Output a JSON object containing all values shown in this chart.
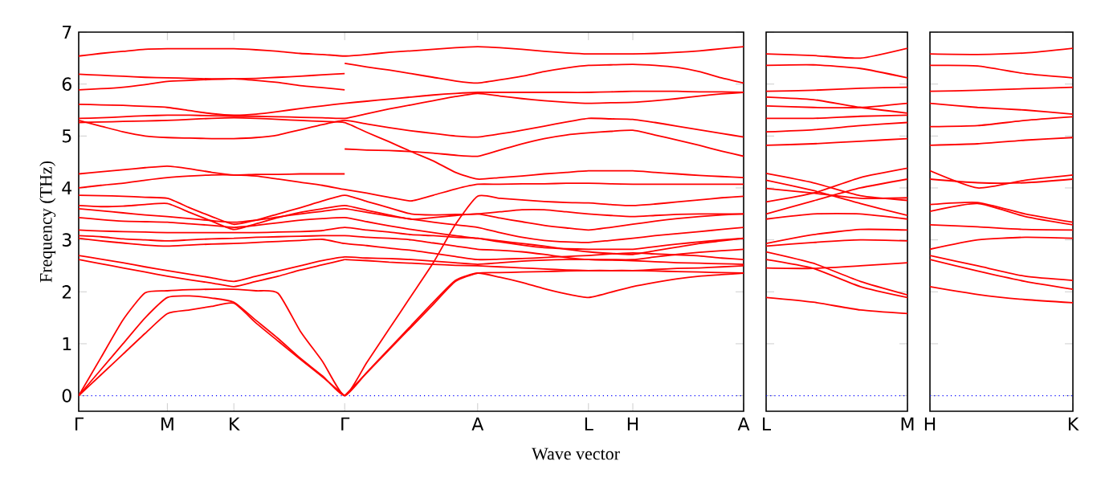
{
  "chart_data": [
    {
      "type": "line",
      "xlabel": "Wave vector",
      "ylabel": "Frequency (THz)",
      "ylim": [
        -0.3,
        7
      ],
      "yticks": [
        0,
        1,
        2,
        3,
        4,
        5,
        6,
        7
      ],
      "categories": [
        "Γ",
        null,
        null,
        null,
        "M",
        null,
        null,
        "K",
        null,
        null,
        null,
        null,
        "Γ",
        null,
        null,
        null,
        null,
        null,
        "A",
        null,
        null,
        null,
        null,
        "L",
        null,
        "H",
        null,
        null,
        null,
        null,
        "A"
      ],
      "ref_lines": [
        {
          "axis": "y",
          "value": 0,
          "color": "#0000ff",
          "line_style": "dotted"
        }
      ],
      "series": [
        {
          "color": "#ff0000",
          "values": [
            6.54,
            6.59,
            6.63,
            6.67,
            6.68,
            6.68,
            6.68,
            6.68,
            6.66,
            6.63,
            6.59,
            6.57,
            6.54,
            6.57,
            6.61,
            6.64,
            6.67,
            6.7,
            6.72,
            6.7,
            6.67,
            6.63,
            6.6,
            6.58,
            6.58,
            6.58,
            6.59,
            6.61,
            6.64,
            6.68,
            6.72
          ]
        },
        {
          "color": "#ff0000",
          "values": [
            6.19,
            6.17,
            6.15,
            6.13,
            6.12,
            6.11,
            6.1,
            6.1,
            6.11,
            6.13,
            6.15,
            6.18,
            6.2,
            null,
            null,
            null,
            null,
            null,
            null,
            null,
            null,
            null,
            null,
            null,
            null,
            null,
            null,
            null,
            null,
            null,
            null
          ]
        },
        {
          "color": "#ff0000",
          "values": [
            5.89,
            5.91,
            5.94,
            5.99,
            6.05,
            6.07,
            6.09,
            6.1,
            6.07,
            6.03,
            5.97,
            5.93,
            5.89,
            null,
            null,
            null,
            null,
            null,
            null,
            null,
            null,
            null,
            null,
            null,
            null,
            null,
            null,
            null,
            null,
            null,
            null
          ]
        },
        {
          "color": "#ff0000",
          "values": [
            5.61,
            5.6,
            5.59,
            5.57,
            5.55,
            5.49,
            5.43,
            5.4,
            5.42,
            5.47,
            5.53,
            5.58,
            5.63,
            5.67,
            5.71,
            5.75,
            5.79,
            5.82,
            5.84,
            5.84,
            5.84,
            5.84,
            5.84,
            5.84,
            5.85,
            5.86,
            5.86,
            5.86,
            5.85,
            5.85,
            5.84
          ]
        },
        {
          "color": "#ff0000",
          "values": [
            5.34,
            5.35,
            5.37,
            5.39,
            5.4,
            5.4,
            5.39,
            5.38,
            5.38,
            5.37,
            5.36,
            5.35,
            5.34,
            5.43,
            5.52,
            5.6,
            5.68,
            5.76,
            5.82,
            5.77,
            5.72,
            5.68,
            5.65,
            5.63,
            5.64,
            5.65,
            5.68,
            5.72,
            5.77,
            5.81,
            5.84
          ]
        },
        {
          "color": "#ff0000",
          "values": [
            5.26,
            5.27,
            5.28,
            5.29,
            5.3,
            5.32,
            5.34,
            5.35,
            5.34,
            5.32,
            5.3,
            5.28,
            5.26,
            5.07,
            4.89,
            4.7,
            4.52,
            4.3,
            4.17,
            4.2,
            4.23,
            4.27,
            4.3,
            4.33,
            4.33,
            4.33,
            4.3,
            4.27,
            4.24,
            4.22,
            4.2
          ]
        },
        {
          "color": "#ff0000",
          "values": [
            5.3,
            5.19,
            5.08,
            5.0,
            4.97,
            4.96,
            4.95,
            4.95,
            4.97,
            5.02,
            5.12,
            5.22,
            5.3,
            5.23,
            5.16,
            5.1,
            5.05,
            5.0,
            4.98,
            5.04,
            5.11,
            5.19,
            5.27,
            5.34,
            5.33,
            5.32,
            5.26,
            5.19,
            5.12,
            5.05,
            4.98
          ]
        },
        {
          "color": "#ff0000",
          "values": [
            4.27,
            4.31,
            4.35,
            4.39,
            4.42,
            4.37,
            4.3,
            4.25,
            4.26,
            4.26,
            4.27,
            4.27,
            4.27,
            null,
            null,
            null,
            null,
            null,
            null,
            null,
            null,
            null,
            null,
            null,
            null,
            null,
            null,
            null,
            null,
            null,
            null
          ]
        },
        {
          "color": "#ff0000",
          "values": [
            4.0,
            4.05,
            4.09,
            4.15,
            4.2,
            4.23,
            4.25,
            4.25,
            4.23,
            4.17,
            4.11,
            4.05,
            3.97,
            3.9,
            3.82,
            3.75,
            3.86,
            3.98,
            4.07,
            4.07,
            4.08,
            4.08,
            4.09,
            4.09,
            4.08,
            4.07,
            4.07,
            4.07,
            4.07,
            4.07,
            4.07
          ]
        },
        {
          "color": "#ff0000",
          "values": [
            3.86,
            3.85,
            3.84,
            3.82,
            3.8,
            3.62,
            3.45,
            3.3,
            3.38,
            3.5,
            3.62,
            3.75,
            3.86,
            3.74,
            3.62,
            3.5,
            3.48,
            3.49,
            3.5,
            3.54,
            3.58,
            3.58,
            3.54,
            3.5,
            3.47,
            3.45,
            3.47,
            3.49,
            3.5,
            3.5,
            3.5
          ]
        },
        {
          "color": "#ff0000",
          "values": [
            3.66,
            3.64,
            3.65,
            3.68,
            3.7,
            3.53,
            3.36,
            3.2,
            3.31,
            3.43,
            3.53,
            3.6,
            3.66,
            3.57,
            3.48,
            3.4,
            3.43,
            3.47,
            3.5,
            3.42,
            3.35,
            3.28,
            3.23,
            3.19,
            3.24,
            3.3,
            3.36,
            3.41,
            3.45,
            3.48,
            3.5
          ]
        },
        {
          "color": "#ff0000",
          "values": [
            3.6,
            3.56,
            3.52,
            3.48,
            3.45,
            3.41,
            3.37,
            3.34,
            3.38,
            3.44,
            3.5,
            3.55,
            3.6,
            3.53,
            3.46,
            3.4,
            3.34,
            3.29,
            3.24,
            3.14,
            3.05,
            2.99,
            2.96,
            2.95,
            2.99,
            3.03,
            3.08,
            3.12,
            3.16,
            3.2,
            3.24
          ]
        },
        {
          "color": "#ff0000",
          "values": [
            3.43,
            3.39,
            3.36,
            3.35,
            3.34,
            3.31,
            3.28,
            3.24,
            3.28,
            3.33,
            3.38,
            3.41,
            3.43,
            3.35,
            3.27,
            3.2,
            3.14,
            3.08,
            3.03,
            2.96,
            2.9,
            2.85,
            2.83,
            2.82,
            2.82,
            2.82,
            2.87,
            2.92,
            2.96,
            3.0,
            3.03
          ]
        },
        {
          "color": "#ff0000",
          "values": [
            3.19,
            3.17,
            3.16,
            3.15,
            3.14,
            3.14,
            3.14,
            3.14,
            3.14,
            3.15,
            3.16,
            3.18,
            3.24,
            3.19,
            3.15,
            3.1,
            3.08,
            3.05,
            3.03,
            2.98,
            2.93,
            2.88,
            2.82,
            2.77,
            2.74,
            2.72,
            2.79,
            2.86,
            2.93,
            2.98,
            3.03
          ]
        },
        {
          "color": "#ff0000",
          "values": [
            3.08,
            3.06,
            3.02,
            3.0,
            2.98,
            3.0,
            3.02,
            3.03,
            3.05,
            3.06,
            3.07,
            3.08,
            3.08,
            3.05,
            3.03,
            3.0,
            2.94,
            2.88,
            2.82,
            2.8,
            2.77,
            2.72,
            2.66,
            2.62,
            2.62,
            2.62,
            2.67,
            2.72,
            2.76,
            2.79,
            2.82
          ]
        },
        {
          "color": "#ff0000",
          "values": [
            3.03,
            2.98,
            2.94,
            2.9,
            2.88,
            2.9,
            2.92,
            2.93,
            2.95,
            2.97,
            2.99,
            3.01,
            2.93,
            2.89,
            2.84,
            2.8,
            2.74,
            2.68,
            2.62,
            2.63,
            2.64,
            2.66,
            2.68,
            2.7,
            2.73,
            2.75,
            2.73,
            2.71,
            2.69,
            2.65,
            2.62
          ]
        },
        {
          "color": "#ff0000",
          "values": [
            2.7,
            2.63,
            2.56,
            2.48,
            2.41,
            2.34,
            2.27,
            2.2,
            2.3,
            2.4,
            2.5,
            2.6,
            2.67,
            2.65,
            2.64,
            2.62,
            2.59,
            2.56,
            2.53,
            2.56,
            2.59,
            2.61,
            2.62,
            2.62,
            2.61,
            2.6,
            2.58,
            2.56,
            2.55,
            2.54,
            2.53
          ]
        },
        {
          "color": "#ff0000",
          "values": [
            2.62,
            2.54,
            2.46,
            2.38,
            2.3,
            2.23,
            2.17,
            2.1,
            2.2,
            2.3,
            2.42,
            2.52,
            2.62,
            null,
            null,
            null,
            null,
            null,
            null,
            null,
            null,
            null,
            null,
            null,
            null,
            null,
            null,
            null,
            null,
            null,
            null
          ]
        },
        {
          "color": "#ff0000",
          "values": [
            0,
            0.73,
            1.46,
            1.98,
            2.02,
            2.04,
            2.05,
            2.05,
            2.02,
            1.97,
            1.24,
            0.66,
            0,
            0.64,
            1.28,
            1.92,
            2.56,
            3.3,
            3.84,
            3.8,
            3.77,
            3.74,
            3.72,
            3.71,
            3.68,
            3.66,
            3.69,
            3.73,
            3.77,
            3.81,
            3.84
          ]
        },
        {
          "color": "#ff0000",
          "values": [
            0,
            0.5,
            1.0,
            1.5,
            1.89,
            1.92,
            1.88,
            1.8,
            1.45,
            1.1,
            0.72,
            0.38,
            0,
            0.45,
            0.9,
            1.35,
            1.8,
            2.22,
            2.36,
            2.28,
            2.18,
            2.06,
            1.96,
            1.89,
            1.99,
            2.1,
            2.18,
            2.25,
            2.3,
            2.33,
            2.36
          ]
        },
        {
          "color": "#ff0000",
          "values": [
            0,
            0.4,
            0.8,
            1.2,
            1.58,
            1.65,
            1.72,
            1.78,
            1.4,
            1.05,
            0.7,
            0.36,
            0,
            null,
            null,
            null,
            null,
            null,
            null,
            null,
            null,
            null,
            null,
            null,
            null,
            null,
            null,
            null,
            null,
            null,
            null
          ]
        },
        {
          "color": "#ff0000",
          "values": [
            null,
            null,
            null,
            null,
            null,
            null,
            null,
            null,
            null,
            null,
            null,
            null,
            6.4,
            6.33,
            6.27,
            6.2,
            6.13,
            6.06,
            6.02,
            6.08,
            6.15,
            6.24,
            6.31,
            6.36,
            6.37,
            6.38,
            6.36,
            6.32,
            6.24,
            6.12,
            6.02
          ]
        },
        {
          "color": "#ff0000",
          "values": [
            null,
            null,
            null,
            null,
            null,
            null,
            null,
            null,
            null,
            null,
            null,
            null,
            4.75,
            4.73,
            4.72,
            4.7,
            4.67,
            4.63,
            4.61,
            4.73,
            4.85,
            4.95,
            5.02,
            5.06,
            5.09,
            5.11,
            5.02,
            4.92,
            4.82,
            4.71,
            4.61
          ]
        },
        {
          "color": "#ff0000",
          "values": [
            null,
            null,
            null,
            null,
            null,
            null,
            null,
            null,
            null,
            null,
            null,
            null,
            2.62,
            2.6,
            2.57,
            2.55,
            2.53,
            2.51,
            2.5,
            2.48,
            2.46,
            2.44,
            2.42,
            2.41,
            2.41,
            2.41,
            2.43,
            2.45,
            2.46,
            2.48,
            2.5
          ]
        },
        {
          "color": "#ff0000",
          "values": [
            null,
            null,
            null,
            null,
            null,
            null,
            null,
            null,
            null,
            null,
            null,
            null,
            0,
            0.44,
            0.88,
            1.32,
            1.76,
            2.2,
            2.36,
            2.37,
            2.38,
            2.39,
            2.4,
            2.41,
            2.41,
            2.41,
            2.4,
            2.39,
            2.38,
            2.37,
            2.36
          ]
        }
      ]
    },
    {
      "type": "line",
      "tick_labels": "x",
      "ylim": [
        -0.3,
        7
      ],
      "yticks": [
        0,
        1,
        2,
        3,
        4,
        5,
        6,
        7
      ],
      "categories": [
        "L",
        null,
        null,
        "M"
      ],
      "ref_lines": [
        {
          "axis": "y",
          "value": 0,
          "color": "#0000ff",
          "line_style": "dotted"
        }
      ],
      "series": [
        {
          "color": "#ff0000",
          "values": [
            6.58,
            6.55,
            6.5,
            6.69
          ]
        },
        {
          "color": "#ff0000",
          "values": [
            6.36,
            6.37,
            6.3,
            6.12
          ]
        },
        {
          "color": "#ff0000",
          "values": [
            5.86,
            5.88,
            5.92,
            5.94
          ]
        },
        {
          "color": "#ff0000",
          "values": [
            5.75,
            5.7,
            5.55,
            5.44
          ]
        },
        {
          "color": "#ff0000",
          "values": [
            5.58,
            5.55,
            5.55,
            5.63
          ]
        },
        {
          "color": "#ff0000",
          "values": [
            5.34,
            5.34,
            5.38,
            5.4
          ]
        },
        {
          "color": "#ff0000",
          "values": [
            5.08,
            5.12,
            5.2,
            5.26
          ]
        },
        {
          "color": "#ff0000",
          "values": [
            4.82,
            4.85,
            4.9,
            4.95
          ]
        },
        {
          "color": "#ff0000",
          "values": [
            4.28,
            4.1,
            3.85,
            3.76
          ]
        },
        {
          "color": "#ff0000",
          "values": [
            4.15,
            3.95,
            3.7,
            3.47
          ]
        },
        {
          "color": "#ff0000",
          "values": [
            3.99,
            3.9,
            3.8,
            3.81
          ]
        },
        {
          "color": "#ff0000",
          "values": [
            3.73,
            3.9,
            4.2,
            4.38
          ]
        },
        {
          "color": "#ff0000",
          "values": [
            3.5,
            3.75,
            4.0,
            4.17
          ]
        },
        {
          "color": "#ff0000",
          "values": [
            3.4,
            3.5,
            3.5,
            3.4
          ]
        },
        {
          "color": "#ff0000",
          "values": [
            2.93,
            3.1,
            3.2,
            3.19
          ]
        },
        {
          "color": "#ff0000",
          "values": [
            2.88,
            2.95,
            3.0,
            2.98
          ]
        },
        {
          "color": "#ff0000",
          "values": [
            2.77,
            2.55,
            2.2,
            1.94
          ]
        },
        {
          "color": "#ff0000",
          "values": [
            2.62,
            2.45,
            2.1,
            1.89
          ]
        },
        {
          "color": "#ff0000",
          "values": [
            2.46,
            2.45,
            2.5,
            2.56
          ]
        },
        {
          "color": "#ff0000",
          "values": [
            1.89,
            1.8,
            1.65,
            1.58
          ]
        }
      ]
    },
    {
      "type": "line",
      "tick_labels": "x",
      "ylim": [
        -0.3,
        7
      ],
      "yticks": [
        0,
        1,
        2,
        3,
        4,
        5,
        6,
        7
      ],
      "categories": [
        "H",
        null,
        null,
        "K"
      ],
      "ref_lines": [
        {
          "axis": "y",
          "value": 0,
          "color": "#0000ff",
          "line_style": "dotted"
        }
      ],
      "series": [
        {
          "color": "#ff0000",
          "values": [
            6.58,
            6.57,
            6.6,
            6.69
          ]
        },
        {
          "color": "#ff0000",
          "values": [
            6.36,
            6.35,
            6.2,
            6.12
          ]
        },
        {
          "color": "#ff0000",
          "values": [
            5.86,
            5.88,
            5.91,
            5.94
          ]
        },
        {
          "color": "#ff0000",
          "values": [
            5.63,
            5.55,
            5.5,
            5.42
          ]
        },
        {
          "color": "#ff0000",
          "values": [
            5.18,
            5.2,
            5.3,
            5.37
          ]
        },
        {
          "color": "#ff0000",
          "values": [
            4.82,
            4.85,
            4.92,
            4.97
          ]
        },
        {
          "color": "#ff0000",
          "values": [
            4.33,
            4.0,
            4.15,
            4.25
          ]
        },
        {
          "color": "#ff0000",
          "values": [
            4.17,
            4.1,
            4.1,
            4.17
          ]
        },
        {
          "color": "#ff0000",
          "values": [
            3.68,
            3.72,
            3.5,
            3.34
          ]
        },
        {
          "color": "#ff0000",
          "values": [
            3.55,
            3.7,
            3.45,
            3.29
          ]
        },
        {
          "color": "#ff0000",
          "values": [
            3.29,
            3.25,
            3.2,
            3.19
          ]
        },
        {
          "color": "#ff0000",
          "values": [
            2.82,
            3.0,
            3.05,
            3.03
          ]
        },
        {
          "color": "#ff0000",
          "values": [
            2.7,
            2.5,
            2.3,
            2.22
          ]
        },
        {
          "color": "#ff0000",
          "values": [
            2.62,
            2.4,
            2.2,
            2.05
          ]
        },
        {
          "color": "#ff0000",
          "values": [
            2.1,
            1.95,
            1.85,
            1.79
          ]
        }
      ]
    }
  ]
}
